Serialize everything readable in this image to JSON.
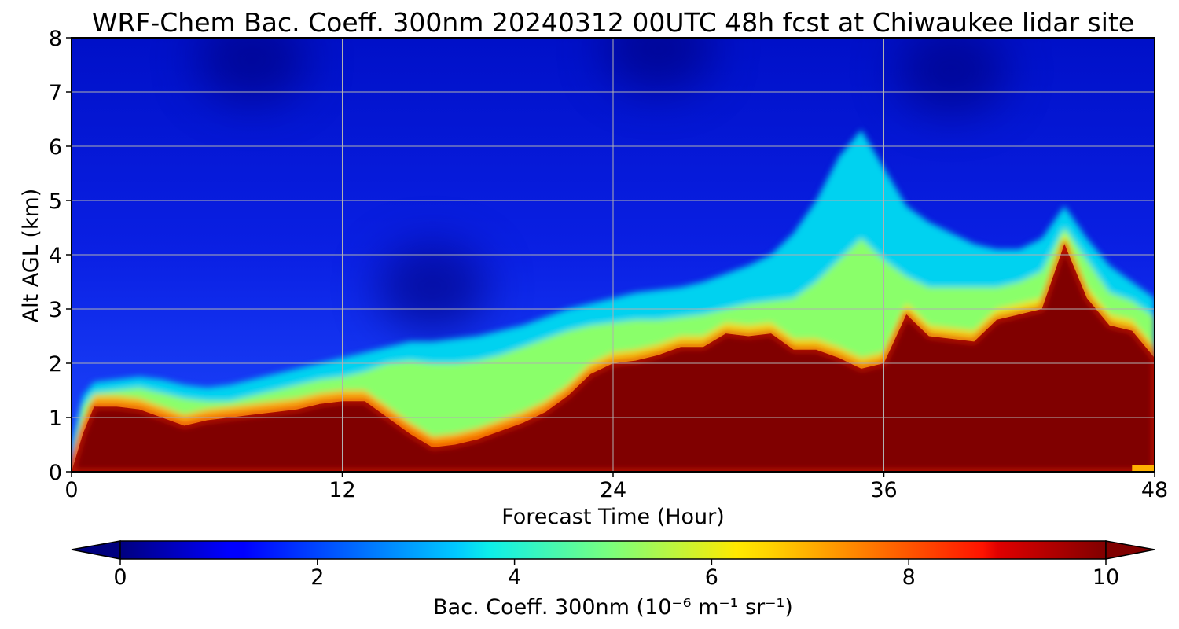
{
  "chart_data": {
    "type": "heatmap",
    "title": "WRF-Chem Bac. Coeff. 300nm  20240312 00UTC 48h fcst at Chiwaukee lidar site",
    "xlabel": "Forecast Time (Hour)",
    "ylabel": "Alt AGL (km)",
    "xlim": [
      0,
      48
    ],
    "ylim": [
      0,
      8
    ],
    "xticks": [
      "0",
      "12",
      "24",
      "36",
      "48"
    ],
    "yticks": [
      "0",
      "1",
      "2",
      "3",
      "4",
      "5",
      "6",
      "7",
      "8"
    ],
    "grid": true,
    "colormap": "jet",
    "colorbar": {
      "label": "Bac. Coeff. 300nm",
      "units": "(10⁻⁶ m⁻¹ sr⁻¹)",
      "range": [
        0,
        10
      ],
      "ticks": [
        "0",
        "2",
        "4",
        "6",
        "8",
        "10"
      ],
      "extend": "both"
    },
    "x_hours": [
      0,
      0.5,
      1,
      2,
      3,
      4,
      5,
      6,
      7,
      8,
      9,
      10,
      11,
      12,
      13,
      14,
      15,
      16,
      17,
      18,
      19,
      20,
      21,
      22,
      23,
      24,
      25,
      26,
      27,
      28,
      29,
      30,
      31,
      32,
      33,
      34,
      35,
      36,
      37,
      38,
      39,
      40,
      41,
      42,
      43,
      44,
      45,
      46,
      47,
      48
    ],
    "dense_layer_top_km": [
      0.0,
      0.7,
      1.2,
      1.2,
      1.15,
      1.0,
      0.85,
      0.95,
      1.0,
      1.05,
      1.1,
      1.15,
      1.25,
      1.3,
      1.3,
      1.0,
      0.7,
      0.45,
      0.5,
      0.6,
      0.75,
      0.9,
      1.1,
      1.4,
      1.8,
      2.0,
      2.05,
      2.15,
      2.3,
      2.3,
      2.55,
      2.5,
      2.55,
      2.25,
      2.25,
      2.1,
      1.9,
      2.0,
      2.9,
      2.5,
      2.45,
      2.4,
      2.8,
      2.9,
      3.0,
      4.2,
      3.2,
      2.7,
      2.6,
      2.1
    ],
    "mid_layer_top_km": [
      0.1,
      1.2,
      1.45,
      1.5,
      1.55,
      1.45,
      1.35,
      1.3,
      1.3,
      1.4,
      1.5,
      1.6,
      1.7,
      1.75,
      1.85,
      2.0,
      2.05,
      2.0,
      2.0,
      2.05,
      2.15,
      2.3,
      2.45,
      2.6,
      2.7,
      2.75,
      2.8,
      2.8,
      2.85,
      2.9,
      3.0,
      3.1,
      3.15,
      3.2,
      3.5,
      3.9,
      4.3,
      3.9,
      3.6,
      3.4,
      3.4,
      3.4,
      3.4,
      3.5,
      3.7,
      4.5,
      3.9,
      3.3,
      3.15,
      2.85
    ],
    "aerosol_top_km": [
      0.5,
      1.4,
      1.65,
      1.7,
      1.75,
      1.7,
      1.6,
      1.55,
      1.6,
      1.7,
      1.8,
      1.9,
      2.0,
      2.1,
      2.2,
      2.3,
      2.4,
      2.4,
      2.45,
      2.5,
      2.6,
      2.7,
      2.85,
      3.0,
      3.1,
      3.2,
      3.3,
      3.35,
      3.4,
      3.5,
      3.65,
      3.8,
      4.0,
      4.4,
      5.0,
      5.8,
      6.3,
      5.6,
      4.9,
      4.6,
      4.4,
      4.2,
      4.1,
      4.1,
      4.3,
      4.9,
      4.3,
      3.8,
      3.5,
      3.2
    ],
    "surface_plume_hour_47_48_km": [
      0.0,
      0.12
    ],
    "upper_minima": [
      {
        "hour": 16,
        "alt_km": 3.4,
        "value": 0.4
      },
      {
        "hour": 39,
        "alt_km": 7.4,
        "value": 0.3
      },
      {
        "hour": 8,
        "alt_km": 7.6,
        "value": 0.5
      },
      {
        "hour": 26,
        "alt_km": 7.8,
        "value": 0.5
      }
    ]
  }
}
